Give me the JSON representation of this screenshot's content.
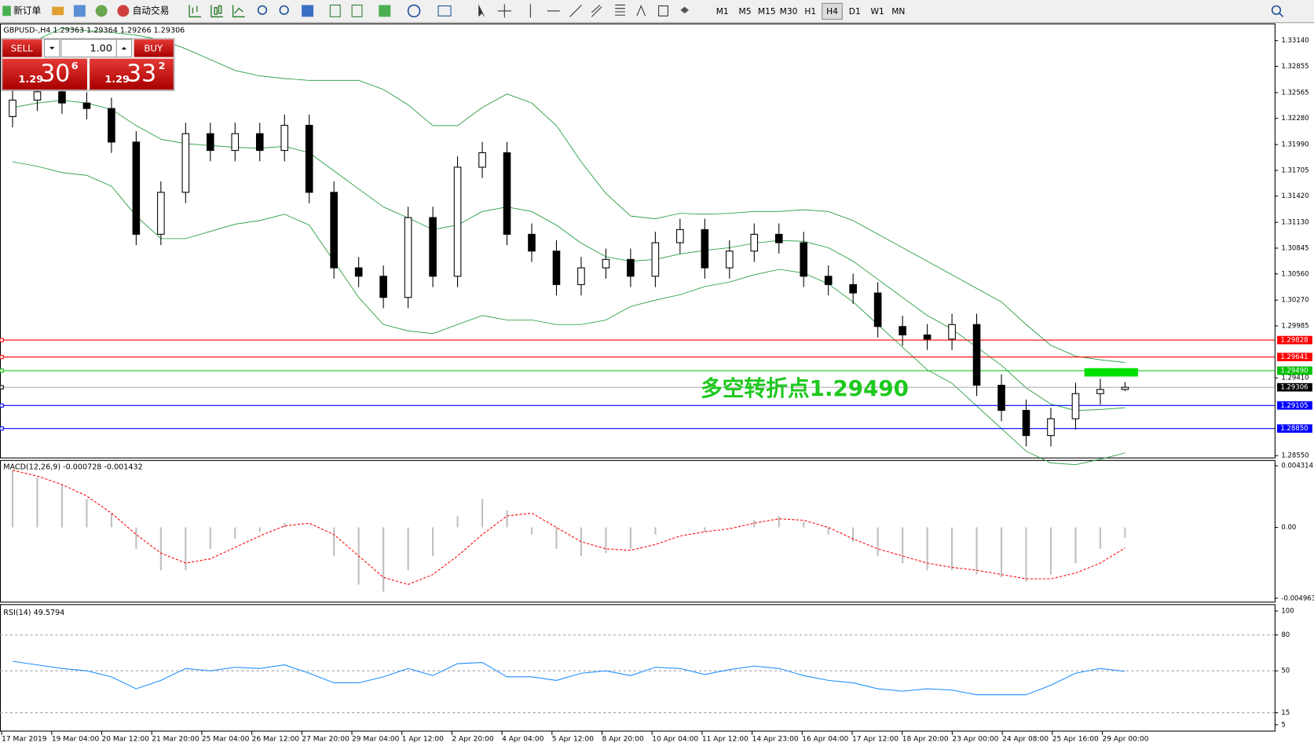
{
  "toolbar": {
    "new_order": "新订单",
    "auto_trading": "自动交易",
    "timeframes": [
      "M1",
      "M5",
      "M15",
      "M30",
      "H1",
      "H4",
      "D1",
      "W1",
      "MN"
    ],
    "active": "H4"
  },
  "trade_panel": {
    "sell": "SELL",
    "buy": "BUY",
    "lot": "1.00",
    "sell_price": {
      "prefix": "1.29",
      "big": "30",
      "sup": "6"
    },
    "buy_price": {
      "prefix": "1.29",
      "big": "33",
      "sup": "2"
    }
  },
  "main_chart": {
    "type": "candlestick",
    "header": "GBPUSD-,H4  1.29363 1.29364 1.29266 1.29306",
    "open": [
      1.323,
      1.32482,
      1.32574,
      1.3245,
      1.32389,
      1.32018,
      1.30998,
      1.31462,
      1.32111,
      1.31925,
      1.32111,
      1.31925,
      1.32203,
      1.31462,
      1.30627,
      1.30534,
      1.303,
      1.31183,
      1.30534,
      1.3174,
      1.319,
      1.30998,
      1.30812,
      1.30442,
      1.30627,
      1.3072,
      1.30534,
      1.30905,
      1.3105,
      1.30627,
      1.30812,
      1.30998,
      1.30905,
      1.30534,
      1.30442,
      1.30349,
      1.29978,
      1.29885,
      1.29839,
      1.3,
      1.29329,
      1.29051,
      1.28772,
      1.28958,
      1.29236,
      1.29282
    ],
    "high": [
      1.32602,
      1.32694,
      1.32694,
      1.3257,
      1.32509,
      1.32138,
      1.31582,
      1.32231,
      1.32231,
      1.32231,
      1.32231,
      1.32323,
      1.32323,
      1.31582,
      1.30747,
      1.30654,
      1.31303,
      1.31303,
      1.3186,
      1.3202,
      1.3202,
      1.31118,
      1.30932,
      1.30747,
      1.3084,
      1.3084,
      1.31025,
      1.3117,
      1.3117,
      1.30932,
      1.31118,
      1.31118,
      1.31025,
      1.30654,
      1.30562,
      1.30469,
      1.30098,
      1.30005,
      1.3012,
      1.3012,
      1.29449,
      1.29171,
      1.29078,
      1.29356,
      1.29402,
      1.29364
    ],
    "low": [
      1.3218,
      1.32362,
      1.3233,
      1.32269,
      1.31898,
      1.30878,
      1.30878,
      1.31342,
      1.31805,
      1.31805,
      1.31805,
      1.31805,
      1.31342,
      1.30507,
      1.30414,
      1.3018,
      1.3018,
      1.30414,
      1.30414,
      1.3162,
      1.30878,
      1.30692,
      1.30322,
      1.30322,
      1.30507,
      1.30414,
      1.30414,
      1.30785,
      1.30507,
      1.30507,
      1.30692,
      1.30785,
      1.30414,
      1.30322,
      1.30229,
      1.29858,
      1.29765,
      1.29719,
      1.29719,
      1.29209,
      1.28931,
      1.28652,
      1.28652,
      1.28838,
      1.29116,
      1.29266
    ],
    "close": [
      1.32482,
      1.32574,
      1.3245,
      1.32389,
      1.32018,
      1.30998,
      1.31462,
      1.32111,
      1.31925,
      1.32111,
      1.31925,
      1.32203,
      1.31462,
      1.30627,
      1.30534,
      1.303,
      1.31183,
      1.30534,
      1.3174,
      1.319,
      1.30998,
      1.30812,
      1.30442,
      1.30627,
      1.3072,
      1.30534,
      1.30905,
      1.3105,
      1.30627,
      1.30812,
      1.30998,
      1.30905,
      1.30534,
      1.30442,
      1.30349,
      1.29978,
      1.29885,
      1.29839,
      1.3,
      1.29329,
      1.29051,
      1.28772,
      1.28958,
      1.29236,
      1.29282,
      1.29306
    ],
    "bands": {
      "color": "#1f9a3a",
      "upper": [
        1.33,
        1.3315,
        1.3328,
        1.3325,
        1.3323,
        1.332,
        1.3315,
        1.3305,
        1.3293,
        1.3281,
        1.3275,
        1.3272,
        1.327,
        1.327,
        1.327,
        1.326,
        1.3243,
        1.322,
        1.322,
        1.324,
        1.3255,
        1.3245,
        1.322,
        1.318,
        1.3145,
        1.312,
        1.3117,
        1.3123,
        1.3122,
        1.3123,
        1.3125,
        1.3125,
        1.3127,
        1.3125,
        1.3115,
        1.31,
        1.3085,
        1.307,
        1.3055,
        1.304,
        1.3025,
        1.3,
        1.2977,
        1.2965,
        1.2961,
        1.2958
      ],
      "middle": [
        1.324,
        1.3245,
        1.3248,
        1.3245,
        1.3238,
        1.322,
        1.3205,
        1.32,
        1.3198,
        1.3196,
        1.3195,
        1.3197,
        1.319,
        1.317,
        1.315,
        1.313,
        1.3118,
        1.3105,
        1.311,
        1.3125,
        1.313,
        1.3125,
        1.311,
        1.309,
        1.3075,
        1.307,
        1.3072,
        1.3078,
        1.3082,
        1.3085,
        1.309,
        1.3093,
        1.3092,
        1.3085,
        1.307,
        1.305,
        1.303,
        1.301,
        1.2995,
        1.2975,
        1.2955,
        1.293,
        1.2912,
        1.2905,
        1.2906,
        1.2908
      ],
      "lower": [
        1.318,
        1.3175,
        1.3168,
        1.3165,
        1.3153,
        1.312,
        1.3095,
        1.3095,
        1.3103,
        1.3111,
        1.3115,
        1.3122,
        1.311,
        1.307,
        1.303,
        1.3,
        1.2993,
        1.299,
        1.3,
        1.301,
        1.3005,
        1.3005,
        1.3,
        1.3,
        1.3005,
        1.302,
        1.3027,
        1.3033,
        1.3042,
        1.3047,
        1.3055,
        1.3061,
        1.3057,
        1.3045,
        1.3025,
        1.3,
        1.2975,
        1.295,
        1.2935,
        1.291,
        1.2885,
        1.286,
        1.2847,
        1.2845,
        1.2851,
        1.2858
      ]
    },
    "ylim": [
      1.2852,
      1.3332
    ],
    "yticks": [
      {
        "value": 1.3314,
        "label": "1.33140"
      },
      1.32855,
      1.32565,
      {
        "value": 1.3228,
        "label": "1.32280"
      },
      {
        "value": 1.3199,
        "label": "1.31990"
      },
      1.31705,
      {
        "value": 1.3142,
        "label": "1.31420"
      },
      {
        "value": 1.3113,
        "label": "1.31130"
      },
      1.30845,
      {
        "value": 1.3056,
        "label": "1.30560"
      },
      {
        "value": 1.3027,
        "label": "1.30270"
      },
      1.29985,
      {
        "value": 1.2941,
        "label": "1.29410"
      },
      {
        "value": 1.2855,
        "label": "1.28550"
      }
    ],
    "levels": [
      {
        "value": 1.29828,
        "label": "1.29828",
        "color": "#ff0000"
      },
      {
        "value": 1.29641,
        "label": "1.29641",
        "color": "#ff0000"
      },
      {
        "value": 1.2949,
        "label": "1.29490",
        "color": "#00c000"
      },
      {
        "value": 1.29105,
        "label": "1.29105",
        "color": "#0000ff"
      },
      {
        "value": 1.2885,
        "label": "1.28850",
        "color": "#0000ff"
      }
    ],
    "current": {
      "value": 1.29306,
      "label": "1.29306",
      "color": "#000000"
    },
    "annotation": "多空转折点1.29490"
  },
  "macd": {
    "header": "MACD(12,26,9) -0.000728 -0.001432",
    "histogram": [
      0.004,
      0.0035,
      0.003,
      0.002,
      0.001,
      -0.0015,
      -0.003,
      -0.003,
      -0.0015,
      -0.0008,
      -0.0003,
      0.0003,
      0.0,
      -0.002,
      -0.004,
      -0.0045,
      -0.003,
      -0.002,
      0.0008,
      0.002,
      0.0012,
      -0.0005,
      -0.0015,
      -0.002,
      -0.0018,
      -0.0015,
      -0.0005,
      0.0,
      -0.0003,
      0.0,
      0.0005,
      0.0008,
      0.0004,
      -0.0005,
      -0.001,
      -0.002,
      -0.0025,
      -0.003,
      -0.003,
      -0.0033,
      -0.0035,
      -0.0038,
      -0.0033,
      -0.0025,
      -0.0015,
      -0.000728
    ],
    "signal": [
      0.004,
      0.0036,
      0.003,
      0.0022,
      0.001,
      -0.0005,
      -0.0018,
      -0.0025,
      -0.0022,
      -0.0014,
      -0.0006,
      0.0001,
      0.0003,
      -0.0005,
      -0.002,
      -0.0035,
      -0.004,
      -0.0033,
      -0.002,
      -0.0005,
      0.0008,
      0.001,
      0.0,
      -0.001,
      -0.0015,
      -0.0016,
      -0.0012,
      -0.0006,
      -0.0003,
      -0.0001,
      0.0003,
      0.0006,
      0.0005,
      0.0,
      -0.0008,
      -0.0015,
      -0.002,
      -0.0025,
      -0.0028,
      -0.003,
      -0.0033,
      -0.0036,
      -0.0036,
      -0.0032,
      -0.0025,
      -0.001432
    ],
    "histogram_color": "#c0c0c0",
    "signal_color": "#ff0000",
    "ylim": [
      -0.0052,
      0.0046
    ],
    "yticks": [
      0.004314,
      {
        "value": 0,
        "label": "0.00"
      },
      -0.004963
    ]
  },
  "rsi": {
    "header": "RSI(14) 49.5794",
    "values": [
      58,
      55,
      52,
      50,
      45,
      35,
      42,
      52,
      50,
      53,
      52,
      55,
      48,
      40,
      40,
      45,
      52,
      46,
      56,
      57,
      45,
      45,
      42,
      48,
      50,
      46,
      53,
      52,
      47,
      51,
      54,
      52,
      46,
      42,
      40,
      35,
      33,
      35,
      34,
      30,
      30,
      30,
      38,
      48,
      52,
      49.5794
    ],
    "color": "#1e90ff",
    "ylim": [
      0,
      105
    ],
    "yticks": [
      100,
      80,
      50,
      15,
      5
    ],
    "levels": [
      80,
      50,
      15
    ]
  },
  "time_axis": {
    "labels": [
      "17 Mar 2019",
      "19 Mar 04:00",
      "20 Mar 12:00",
      "21 Mar 20:00",
      "25 Mar 04:00",
      "26 Mar 12:00",
      "27 Mar 20:00",
      "29 Mar 04:00",
      "1 Apr 12:00",
      "2 Apr 20:00",
      "4 Apr 04:00",
      "5 Apr 12:00",
      "8 Apr 20:00",
      "10 Apr 04:00",
      "11 Apr 12:00",
      "14 Apr 23:00",
      "16 Apr 04:00",
      "17 Apr 12:00",
      "18 Apr 20:00",
      "23 Apr 00:00",
      "24 Apr 08:00",
      "25 Apr 16:00",
      "29 Apr 00:00"
    ]
  }
}
